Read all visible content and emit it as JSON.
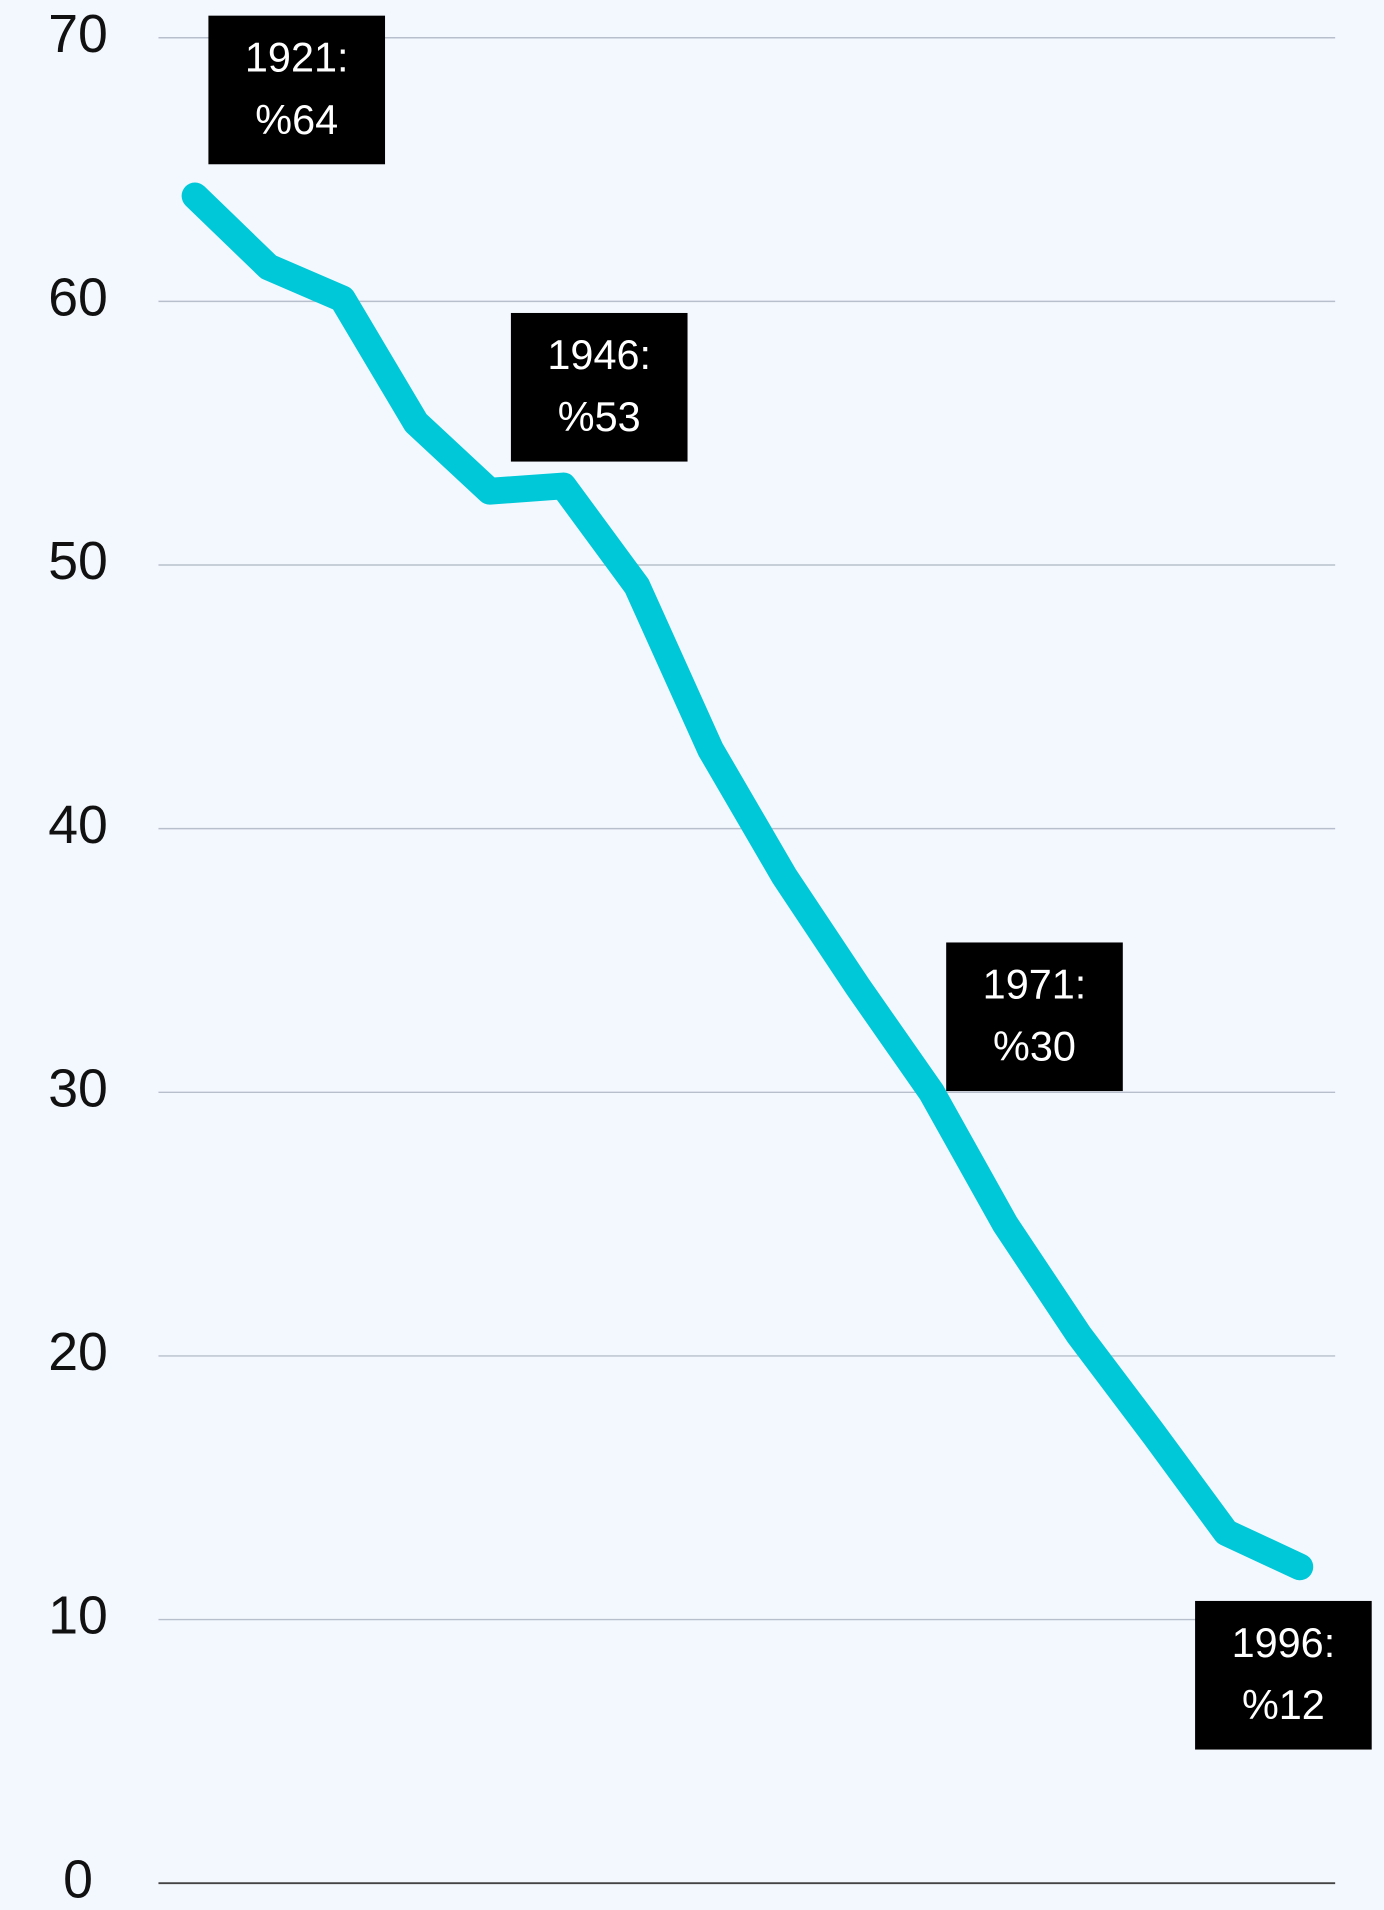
{
  "chart_data": {
    "type": "line",
    "x": [
      1921,
      1926,
      1931,
      1936,
      1941,
      1946,
      1951,
      1956,
      1961,
      1966,
      1971,
      1976,
      1981,
      1986,
      1991,
      1996
    ],
    "series": [
      {
        "color": "#00c8d8",
        "values": [
          64,
          61.3,
          60.1,
          55.4,
          52.8,
          53,
          49.2,
          43.0,
          38.2,
          34.0,
          30,
          25.0,
          20.8,
          17.1,
          13.3,
          12
        ],
        "x_labels": [
          "1921:",
          null,
          null,
          null,
          null,
          "1946:",
          null,
          null,
          null,
          null,
          "1971:",
          null,
          null,
          null,
          null,
          "1996:"
        ],
        "value_labels": [
          "%64",
          null,
          null,
          null,
          null,
          "%53",
          null,
          null,
          null,
          null,
          "%30",
          null,
          null,
          null,
          null,
          "%12"
        ]
      }
    ],
    "xlim": [
      1921,
      1996
    ],
    "ylim": [
      0,
      70
    ],
    "yticks": [
      0,
      10,
      20,
      30,
      40,
      50,
      60,
      70
    ],
    "grid": true
  }
}
